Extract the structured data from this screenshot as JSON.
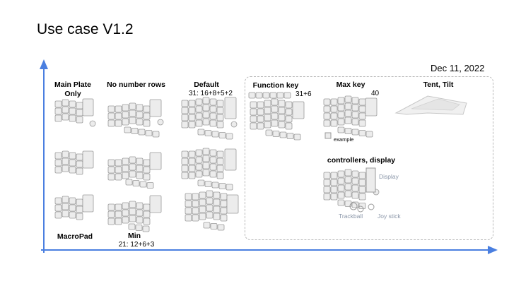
{
  "title": "Use case V1.2",
  "date": "Dec 11, 2022",
  "columns": {
    "main_plate": {
      "label": "Main Plate Only"
    },
    "no_number_rows": {
      "label": "No number rows"
    },
    "default": {
      "label": "Default",
      "count": "31: 16+8+5+2"
    },
    "function_key": {
      "label": "Function key",
      "count": "31+6"
    },
    "max_key": {
      "label": "Max key",
      "count": "40",
      "example": "example"
    },
    "tent_tilt": {
      "label": "Tent, Tilt"
    },
    "controllers": {
      "label": "controllers, display",
      "display": "Display",
      "trackball": "Trackball",
      "joystick": "Joy stick"
    }
  },
  "rows": {
    "macropad": {
      "label": "MacroPad"
    },
    "min": {
      "label": "Min",
      "count": "21: 12+6+3"
    }
  },
  "colors": {
    "axis": "#4a7fe0",
    "key_fill": "#ececec",
    "key_stroke": "#9a9a9a",
    "dash": "#b8b8b8"
  }
}
